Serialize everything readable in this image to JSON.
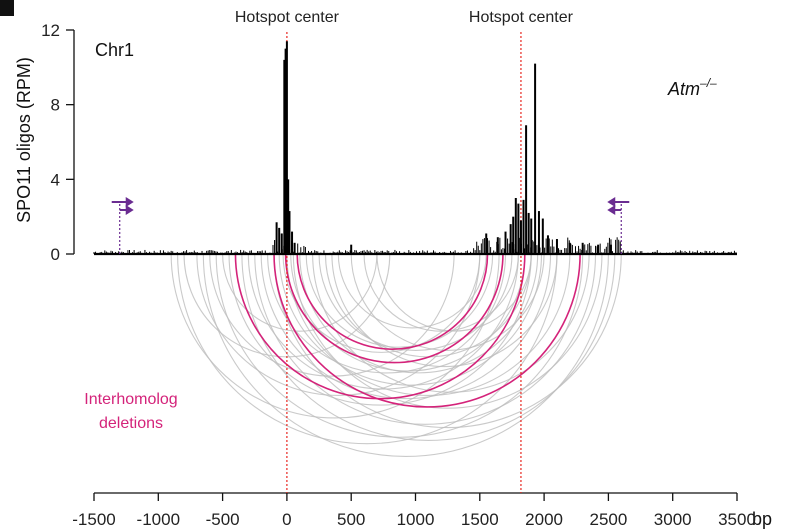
{
  "chart_data": {
    "type": "line",
    "chromosome_label": "Chr1",
    "genotype_label": "Atm",
    "genotype_superscript": "–/–",
    "ylabel": "SPO11 oligos (RPM)",
    "xlabel_unit": "bp",
    "xlim": [
      -1500,
      3500
    ],
    "ylim": [
      0,
      12
    ],
    "x_ticks": [
      -1500,
      -1000,
      -500,
      0,
      500,
      1000,
      1500,
      2000,
      2500,
      3000,
      3500
    ],
    "y_ticks": [
      0,
      4,
      8,
      12
    ],
    "hotspot_centers": [
      {
        "label": "Hotspot center",
        "x": 0
      },
      {
        "label": "Hotspot center",
        "x": 1820
      }
    ],
    "deletion_label": "Interhomolog\ndeletions",
    "deletion_label_lines": [
      "Interhomolog",
      "deletions"
    ],
    "colors": {
      "signal": "#000000",
      "hotspot_line": "#e8261f",
      "highlight_arc": "#d4237a",
      "gray_arc": "#bdbdbd",
      "primer": "#6a2c91"
    },
    "primers": [
      {
        "x": -1300,
        "orientation": "forward"
      },
      {
        "x": 2600,
        "orientation": "reverse"
      }
    ],
    "signal_peaks": [
      {
        "x": -80,
        "y": 1.7
      },
      {
        "x": -60,
        "y": 1.4
      },
      {
        "x": -40,
        "y": 1.1
      },
      {
        "x": -20,
        "y": 10.4
      },
      {
        "x": -10,
        "y": 11.0
      },
      {
        "x": 0,
        "y": 11.4
      },
      {
        "x": 10,
        "y": 4.0
      },
      {
        "x": 20,
        "y": 2.3
      },
      {
        "x": 40,
        "y": 1.2
      },
      {
        "x": 60,
        "y": 0.6
      },
      {
        "x": 500,
        "y": 0.5
      },
      {
        "x": 1550,
        "y": 1.1
      },
      {
        "x": 1640,
        "y": 0.9
      },
      {
        "x": 1700,
        "y": 1.2
      },
      {
        "x": 1740,
        "y": 1.6
      },
      {
        "x": 1760,
        "y": 2.0
      },
      {
        "x": 1780,
        "y": 3.0
      },
      {
        "x": 1800,
        "y": 2.7
      },
      {
        "x": 1820,
        "y": 1.8
      },
      {
        "x": 1840,
        "y": 2.9
      },
      {
        "x": 1860,
        "y": 6.9
      },
      {
        "x": 1880,
        "y": 2.2
      },
      {
        "x": 1900,
        "y": 1.9
      },
      {
        "x": 1930,
        "y": 10.2
      },
      {
        "x": 1960,
        "y": 2.3
      },
      {
        "x": 1990,
        "y": 1.9
      },
      {
        "x": 2030,
        "y": 1.0
      },
      {
        "x": 2100,
        "y": 0.8
      },
      {
        "x": 2200,
        "y": 0.6
      },
      {
        "x": 2300,
        "y": 0.6
      },
      {
        "x": 2420,
        "y": 0.5
      },
      {
        "x": 2520,
        "y": 0.5
      }
    ],
    "deletion_arcs": [
      {
        "start": -400,
        "end": 1850,
        "highlight": true
      },
      {
        "start": -100,
        "end": 2280,
        "highlight": true
      },
      {
        "start": -10,
        "end": 1680,
        "highlight": true
      },
      {
        "start": 80,
        "end": 1560,
        "highlight": true
      },
      {
        "start": -900,
        "end": 1650,
        "highlight": false
      },
      {
        "start": -850,
        "end": 2100,
        "highlight": false
      },
      {
        "start": -700,
        "end": 1500,
        "highlight": false
      },
      {
        "start": -650,
        "end": 2500,
        "highlight": false
      },
      {
        "start": -600,
        "end": 1300,
        "highlight": false
      },
      {
        "start": -550,
        "end": 2300,
        "highlight": false
      },
      {
        "start": -450,
        "end": 1900,
        "highlight": false
      },
      {
        "start": -350,
        "end": 2550,
        "highlight": false
      },
      {
        "start": -300,
        "end": 1800,
        "highlight": false
      },
      {
        "start": -250,
        "end": 2400,
        "highlight": false
      },
      {
        "start": -200,
        "end": 2050,
        "highlight": false
      },
      {
        "start": -150,
        "end": 1700,
        "highlight": false
      },
      {
        "start": -100,
        "end": 2600,
        "highlight": false
      },
      {
        "start": -60,
        "end": 1980,
        "highlight": false
      },
      {
        "start": -30,
        "end": 1500,
        "highlight": false
      },
      {
        "start": 0,
        "end": 2200,
        "highlight": false
      },
      {
        "start": 30,
        "end": 1850,
        "highlight": false
      },
      {
        "start": 50,
        "end": 2450,
        "highlight": false
      },
      {
        "start": 100,
        "end": 1950,
        "highlight": false
      },
      {
        "start": 150,
        "end": 1600,
        "highlight": false
      },
      {
        "start": 200,
        "end": 2350,
        "highlight": false
      },
      {
        "start": 250,
        "end": 1750,
        "highlight": false
      },
      {
        "start": 300,
        "end": 1900,
        "highlight": false
      },
      {
        "start": 350,
        "end": 2100,
        "highlight": false
      },
      {
        "start": 400,
        "end": 1550,
        "highlight": false
      },
      {
        "start": 500,
        "end": 2000,
        "highlight": false
      },
      {
        "start": 600,
        "end": 1800,
        "highlight": false
      },
      {
        "start": 700,
        "end": 1900,
        "highlight": false
      },
      {
        "start": -800,
        "end": 800,
        "highlight": false
      },
      {
        "start": -500,
        "end": 700,
        "highlight": false
      }
    ]
  }
}
